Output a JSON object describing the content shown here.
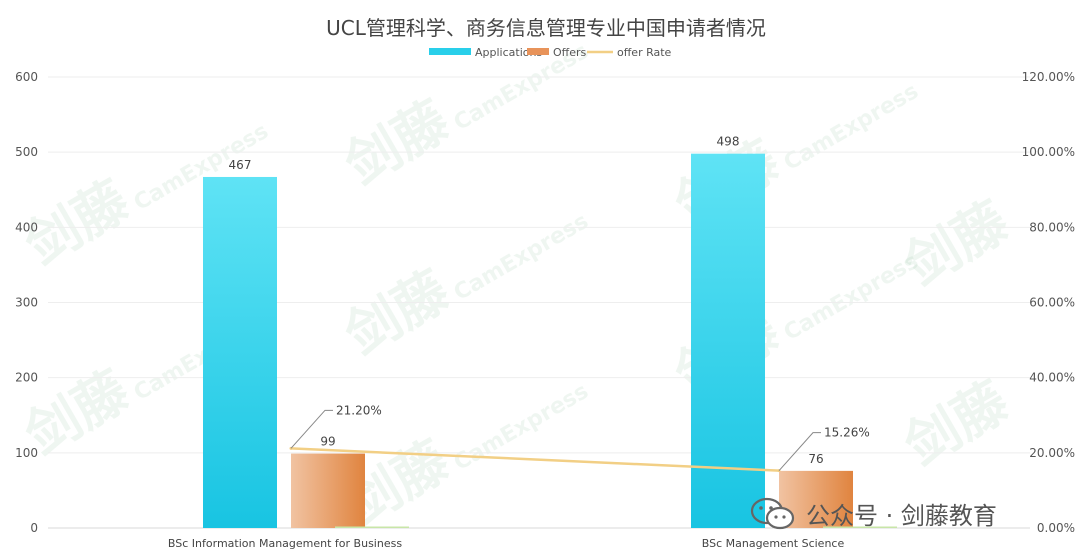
{
  "chart_data": {
    "type": "bar",
    "title": "UCL管理科学、商务信息管理专业中国申请者情况",
    "categories": [
      "BSc Information Management for Business",
      "BSc Management Science"
    ],
    "series": [
      {
        "name": "Applications",
        "type": "bar",
        "values": [
          467,
          498
        ],
        "color": "#29cfea"
      },
      {
        "name": "Offers",
        "type": "bar",
        "values": [
          99,
          76
        ],
        "color": "#e8935a"
      },
      {
        "name": "offer Rate",
        "type": "line",
        "axis": "right",
        "values": [
          21.2,
          15.26
        ],
        "labels": [
          "21.20%",
          "15.26%"
        ],
        "color": "#f2cf85"
      }
    ],
    "y_left": {
      "min": 0,
      "max": 600,
      "ticks": [
        "0",
        "100",
        "200",
        "300",
        "400",
        "500",
        "600"
      ]
    },
    "y_right": {
      "min": 0,
      "max": 120,
      "ticks": [
        "0.00%",
        "20.00%",
        "40.00%",
        "60.00%",
        "80.00%",
        "100.00%",
        "120.00%"
      ]
    },
    "grid": true,
    "legend_position": "top-center"
  },
  "watermark": {
    "brand": "剑藤",
    "sub": "CamExpress"
  },
  "footer": {
    "text": "公众号 · 剑藤教育",
    "icon": "wechat-icon"
  }
}
